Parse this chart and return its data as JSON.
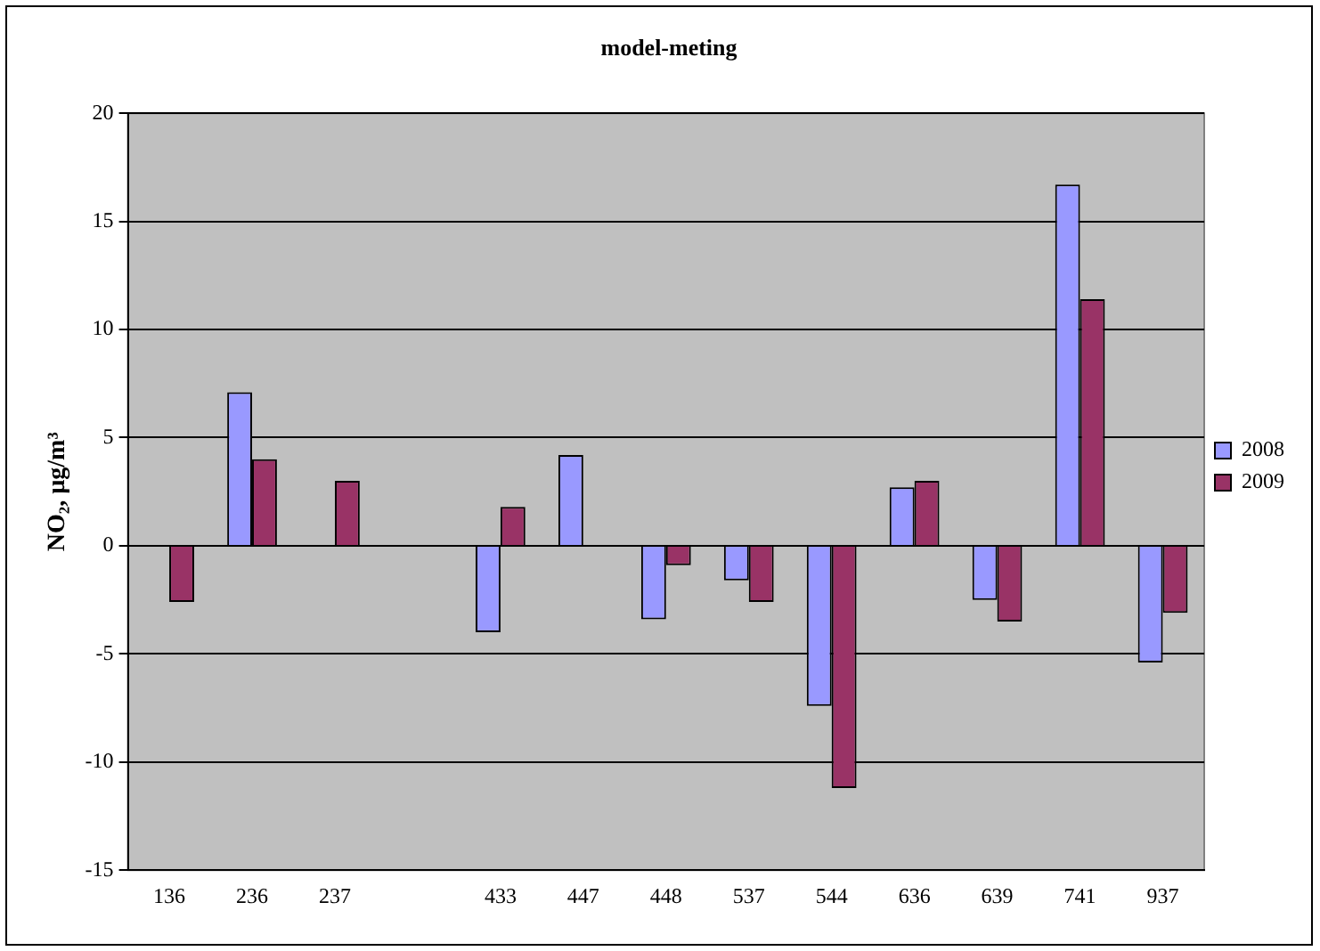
{
  "chart_data": {
    "type": "bar",
    "title": "model-meting",
    "ylabel": "NO₂, µg/m³",
    "categories": [
      "136",
      "236",
      "237",
      null,
      "433",
      "447",
      "448",
      "537",
      "544",
      "636",
      "639",
      "741",
      "937"
    ],
    "series": [
      {
        "name": "2008",
        "color": "#9999ff",
        "values": [
          null,
          7.1,
          null,
          null,
          -4.0,
          4.2,
          -3.4,
          -1.6,
          -7.4,
          2.7,
          -2.5,
          16.7,
          -5.4
        ]
      },
      {
        "name": "2009",
        "color": "#993366",
        "values": [
          -2.6,
          4.0,
          3.0,
          null,
          1.8,
          null,
          -0.9,
          -2.6,
          -11.2,
          3.0,
          -3.5,
          11.4,
          -3.1
        ]
      }
    ],
    "ylim": [
      -15,
      20
    ],
    "yticks": [
      -15,
      -10,
      -5,
      0,
      5,
      10,
      15,
      20
    ],
    "grid": "y",
    "legend": "right"
  }
}
